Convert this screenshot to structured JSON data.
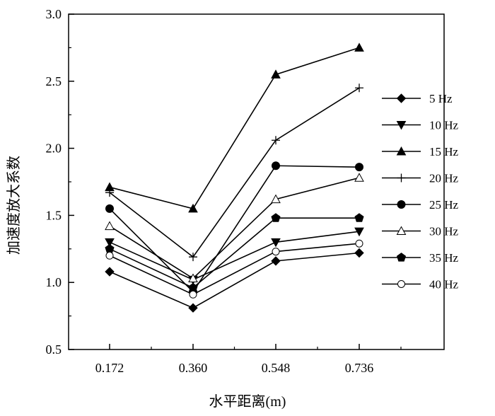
{
  "chart_data": {
    "type": "line",
    "title": "",
    "xlabel": "水平距离(m)",
    "ylabel": "加速度放大系数",
    "categories": [
      "0.172",
      "0.360",
      "0.548",
      "0.736"
    ],
    "ylim": [
      0.5,
      3.0
    ],
    "yticks": [
      "0.5",
      "1.0",
      "1.5",
      "2.0",
      "2.5",
      "3.0"
    ],
    "grid": false,
    "legend_position": "right",
    "series": [
      {
        "name": "5 Hz",
        "marker": "diamond-filled",
        "values": [
          1.08,
          0.81,
          1.16,
          1.22
        ]
      },
      {
        "name": "10 Hz",
        "marker": "triangle-down-filled",
        "values": [
          1.3,
          1.02,
          1.3,
          1.38
        ]
      },
      {
        "name": "15 Hz",
        "marker": "triangle-up-filled",
        "values": [
          1.71,
          1.55,
          2.55,
          2.75
        ]
      },
      {
        "name": "20 Hz",
        "marker": "plus",
        "values": [
          1.67,
          1.19,
          2.06,
          2.45
        ]
      },
      {
        "name": "25 Hz",
        "marker": "circle-filled",
        "values": [
          1.55,
          0.93,
          1.87,
          1.86
        ]
      },
      {
        "name": "30 Hz",
        "marker": "triangle-up-open",
        "values": [
          1.42,
          1.03,
          1.62,
          1.78
        ]
      },
      {
        "name": "35 Hz",
        "marker": "pentagon-filled",
        "values": [
          1.25,
          0.96,
          1.48,
          1.48
        ]
      },
      {
        "name": "40 Hz",
        "marker": "circle-open",
        "values": [
          1.2,
          0.91,
          1.23,
          1.29
        ]
      }
    ]
  }
}
